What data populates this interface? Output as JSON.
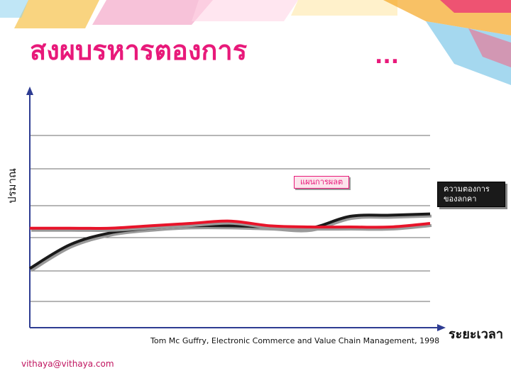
{
  "slide": {
    "title": "สงผบรหารตองการ",
    "title_ellipsis": "...",
    "y_axis_label": "ปรมาณ",
    "x_axis_label": "ระยะเวลา",
    "credit": "Tom Mc Guffry, Electronic Commerce and Value Chain Management, 1998",
    "footer": "vithaya@vithaya.com",
    "colors": {
      "title": "#e8197a",
      "plan_line": "#e8142a",
      "demand_line": "#1a1a1a"
    }
  },
  "chart_data": {
    "type": "line",
    "xlabel": "ระยะเวลา",
    "ylabel": "ปรมาณ",
    "grid": true,
    "series": [
      {
        "name": "แผนการผลต",
        "color": "#e8142a",
        "x": [
          0,
          10,
          20,
          30,
          40,
          50,
          60,
          70,
          80,
          90,
          100
        ],
        "y": [
          42,
          42,
          42,
          43,
          44,
          45,
          43,
          42.5,
          42.5,
          42.5,
          44
        ]
      },
      {
        "name": "ความตองการ ของลกคา",
        "color": "#1a1a1a",
        "x": [
          0,
          10,
          20,
          30,
          40,
          50,
          60,
          70,
          80,
          90,
          100
        ],
        "y": [
          25,
          35,
          40,
          42,
          43,
          43,
          42.5,
          42,
          47,
          47.5,
          48
        ]
      }
    ]
  }
}
